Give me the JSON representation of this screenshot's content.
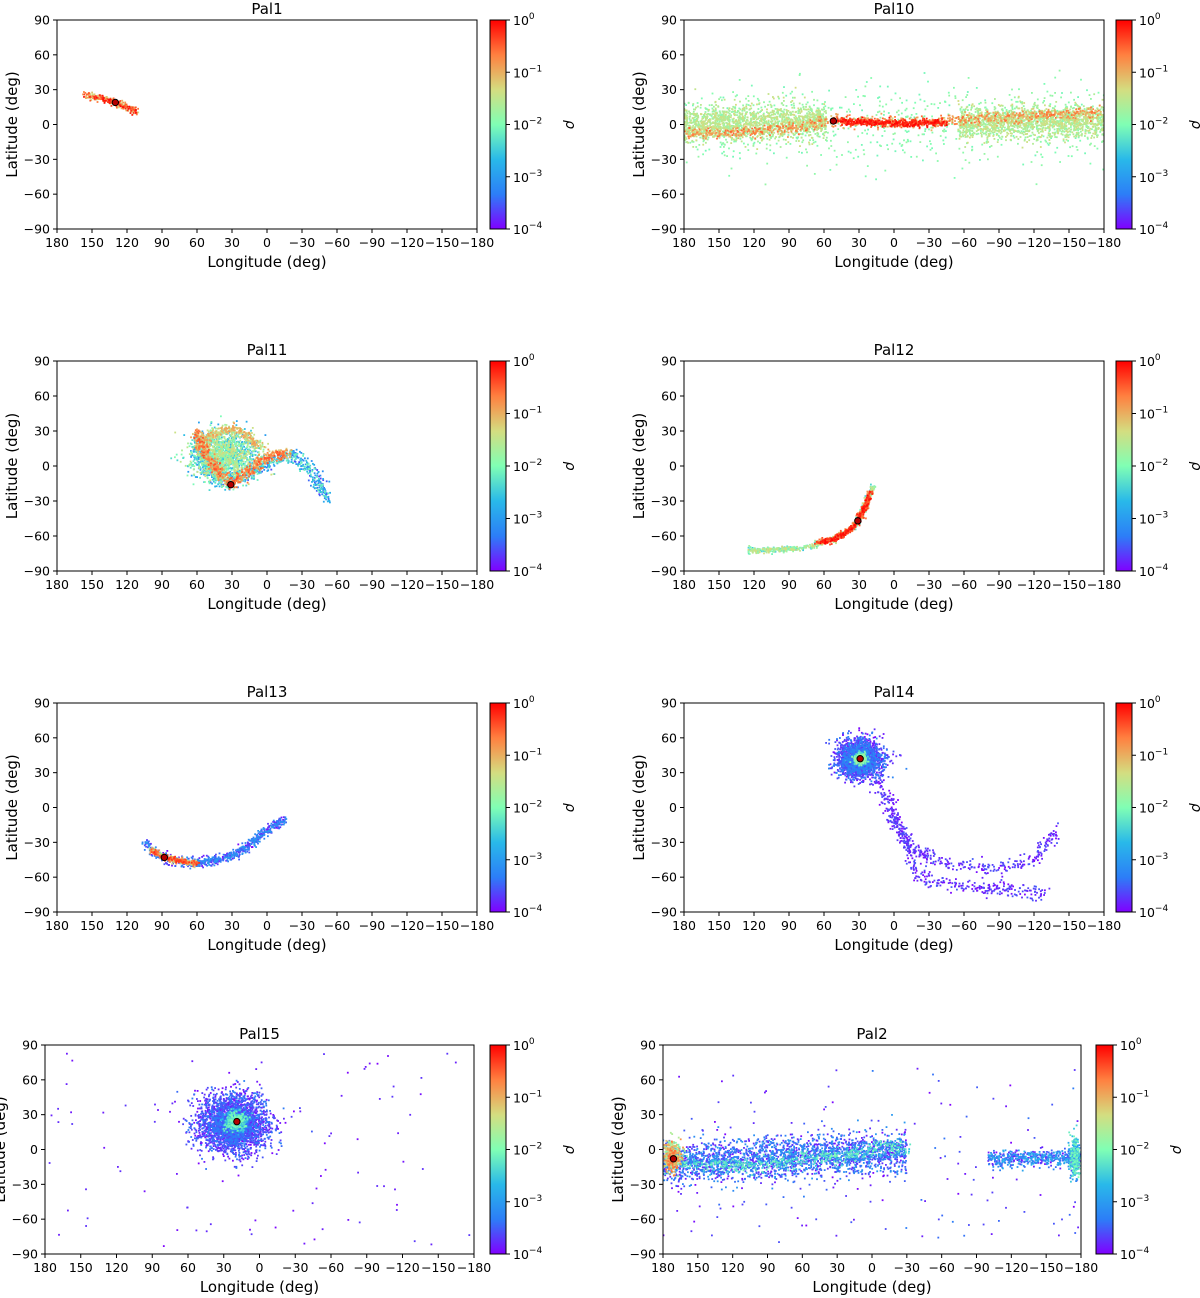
{
  "figure": {
    "colorbar_label": "ρ",
    "colorbar_ticks": [
      {
        "base": "10",
        "exp": "0"
      },
      {
        "base": "10",
        "exp": "−1"
      },
      {
        "base": "10",
        "exp": "−2"
      },
      {
        "base": "10",
        "exp": "−3"
      },
      {
        "base": "10",
        "exp": "−4"
      }
    ],
    "colormap": [
      "#8000ff",
      "#2c7ef7",
      "#29b9e9",
      "#80ffb4",
      "#d4dd80",
      "#ff8040",
      "#ff0000"
    ]
  },
  "chart_data": [
    {
      "type": "scatter",
      "title": "Pal1",
      "xlabel": "Longitude (deg)",
      "ylabel": "Latitude (deg)",
      "xlim": [
        180,
        -180
      ],
      "ylim": [
        -90,
        90
      ],
      "xticks": [
        "180",
        "150",
        "120",
        "90",
        "60",
        "30",
        "0",
        "−30",
        "−60",
        "−90",
        "−120",
        "−150",
        "−180"
      ],
      "yticks": [
        "90",
        "60",
        "30",
        "0",
        "−30",
        "−60",
        "−90"
      ],
      "cluster_position": {
        "lon": 130,
        "lat": 19
      },
      "density_structure": [
        {
          "kind": "stream",
          "points": [
            [
              158,
              26
            ],
            [
              145,
              23
            ],
            [
              130,
              19
            ],
            [
              120,
              15
            ],
            [
              112,
              11
            ]
          ],
          "spread": 1.5,
          "count": 260,
          "dmin": 0.03,
          "dmax": 0.9
        }
      ]
    },
    {
      "type": "scatter",
      "title": "Pal10",
      "xlabel": "Longitude (deg)",
      "ylabel": "Latitude (deg)",
      "xlim": [
        180,
        -180
      ],
      "ylim": [
        -90,
        90
      ],
      "xticks": [
        "180",
        "150",
        "120",
        "90",
        "60",
        "30",
        "0",
        "−30",
        "−60",
        "−90",
        "−120",
        "−150",
        "−180"
      ],
      "yticks": [
        "90",
        "60",
        "30",
        "0",
        "−30",
        "−60",
        "−90"
      ],
      "cluster_position": {
        "lon": 52,
        "lat": 3
      },
      "density_structure": [
        {
          "kind": "band",
          "lon": [
            180,
            58
          ],
          "center": [
            0,
            3
          ],
          "spread": 14,
          "count": 1500,
          "dmin": 0.012,
          "dmax": 0.05
        },
        {
          "kind": "band",
          "lon": [
            -55,
            -180
          ],
          "center": [
            1,
            3
          ],
          "spread": 13,
          "count": 1500,
          "dmin": 0.012,
          "dmax": 0.05
        },
        {
          "kind": "band",
          "lon": [
            180,
            -180
          ],
          "center": [
            0,
            0
          ],
          "spread": 32,
          "count": 650,
          "dmin": 0.008,
          "dmax": 0.016
        },
        {
          "kind": "stream",
          "points": [
            [
              180,
              -8
            ],
            [
              120,
              -6
            ],
            [
              80,
              -2
            ],
            [
              55,
              3
            ],
            [
              20,
              3
            ],
            [
              -10,
              2
            ],
            [
              -30,
              2
            ],
            [
              -55,
              4
            ],
            [
              -120,
              8
            ],
            [
              -180,
              10
            ]
          ],
          "spread": 2.5,
          "count": 900,
          "dmin": 0.05,
          "dmax": 0.3
        },
        {
          "kind": "stream",
          "points": [
            [
              48,
              3
            ],
            [
              20,
              2
            ],
            [
              0,
              1
            ],
            [
              -20,
              1
            ],
            [
              -45,
              2
            ]
          ],
          "spread": 1.5,
          "count": 500,
          "dmin": 0.3,
          "dmax": 1.0
        }
      ]
    },
    {
      "type": "scatter",
      "title": "Pal11",
      "xlabel": "Longitude (deg)",
      "ylabel": "Latitude (deg)",
      "xlim": [
        180,
        -180
      ],
      "ylim": [
        -90,
        90
      ],
      "xticks": [
        "180",
        "150",
        "120",
        "90",
        "60",
        "30",
        "0",
        "−30",
        "−60",
        "−90",
        "−120",
        "−150",
        "−180"
      ],
      "yticks": [
        "90",
        "60",
        "30",
        "0",
        "−30",
        "−60",
        "−90"
      ],
      "cluster_position": {
        "lon": 31,
        "lat": -16
      },
      "density_structure": [
        {
          "kind": "blob",
          "center": [
            37,
            9
          ],
          "rx": 22,
          "ry": 17,
          "count": 1500,
          "dmin": 0.001,
          "dmax": 0.05
        },
        {
          "kind": "stream",
          "points": [
            [
              58,
              28
            ],
            [
              60,
              12
            ],
            [
              50,
              -5
            ],
            [
              35,
              -14
            ],
            [
              20,
              -10
            ],
            [
              0,
              2
            ],
            [
              -20,
              10
            ],
            [
              -40,
              -5
            ],
            [
              -52,
              -30
            ]
          ],
          "spread": 3,
          "count": 700,
          "dmin": 0.0002,
          "dmax": 0.01
        },
        {
          "kind": "stream",
          "points": [
            [
              60,
              30
            ],
            [
              55,
              15
            ],
            [
              45,
              0
            ],
            [
              31,
              -16
            ],
            [
              15,
              -5
            ],
            [
              0,
              8
            ],
            [
              -20,
              12
            ]
          ],
          "spread": 2.5,
          "count": 600,
          "dmin": 0.05,
          "dmax": 0.4
        },
        {
          "kind": "stream",
          "points": [
            [
              55,
              20
            ],
            [
              45,
              28
            ],
            [
              30,
              32
            ],
            [
              15,
              25
            ],
            [
              5,
              15
            ]
          ],
          "spread": 2,
          "count": 300,
          "dmin": 0.02,
          "dmax": 0.15
        }
      ]
    },
    {
      "type": "scatter",
      "title": "Pal12",
      "xlabel": "Longitude (deg)",
      "ylabel": "Latitude (deg)",
      "xlim": [
        180,
        -180
      ],
      "ylim": [
        -90,
        90
      ],
      "xticks": [
        "180",
        "150",
        "120",
        "90",
        "60",
        "30",
        "0",
        "−30",
        "−60",
        "−90",
        "−120",
        "−150",
        "−180"
      ],
      "yticks": [
        "90",
        "60",
        "30",
        "0",
        "−30",
        "−60",
        "−90"
      ],
      "cluster_position": {
        "lon": 31,
        "lat": -47
      },
      "density_structure": [
        {
          "kind": "stream",
          "points": [
            [
              125,
              -72
            ],
            [
              100,
              -72
            ],
            [
              75,
              -70
            ],
            [
              50,
              -62
            ],
            [
              35,
              -53
            ],
            [
              31,
              -47
            ],
            [
              25,
              -35
            ],
            [
              20,
              -22
            ],
            [
              18,
              -17
            ]
          ],
          "spread": 1.2,
          "count": 600,
          "dmin": 0.003,
          "dmax": 0.05
        },
        {
          "kind": "stream",
          "points": [
            [
              65,
              -66
            ],
            [
              50,
              -62
            ],
            [
              35,
              -53
            ],
            [
              31,
              -47
            ],
            [
              25,
              -35
            ],
            [
              20,
              -22
            ]
          ],
          "spread": 1.2,
          "count": 500,
          "dmin": 0.1,
          "dmax": 1.0
        }
      ]
    },
    {
      "type": "scatter",
      "title": "Pal13",
      "xlabel": "Longitude (deg)",
      "ylabel": "Latitude (deg)",
      "xlim": [
        180,
        -180
      ],
      "ylim": [
        -90,
        90
      ],
      "xticks": [
        "180",
        "150",
        "120",
        "90",
        "60",
        "30",
        "0",
        "−30",
        "−60",
        "−90",
        "−120",
        "−150",
        "−180"
      ],
      "yticks": [
        "90",
        "60",
        "30",
        "0",
        "−30",
        "−60",
        "−90"
      ],
      "cluster_position": {
        "lon": 88,
        "lat": -43
      },
      "density_structure": [
        {
          "kind": "stream",
          "points": [
            [
              105,
              -30
            ],
            [
              95,
              -40
            ],
            [
              80,
              -46
            ],
            [
              60,
              -48
            ],
            [
              40,
              -45
            ],
            [
              20,
              -36
            ],
            [
              5,
              -24
            ],
            [
              -15,
              -10
            ]
          ],
          "spread": 2,
          "count": 700,
          "dmin": 0.0001,
          "dmax": 0.001
        },
        {
          "kind": "stream",
          "points": [
            [
              100,
              -36
            ],
            [
              88,
              -43
            ],
            [
              75,
              -46
            ],
            [
              60,
              -48
            ]
          ],
          "spread": 1.2,
          "count": 400,
          "dmin": 0.01,
          "dmax": 0.6
        }
      ]
    },
    {
      "type": "scatter",
      "title": "Pal14",
      "xlabel": "Longitude (deg)",
      "ylabel": "Latitude (deg)",
      "xlim": [
        180,
        -180
      ],
      "ylim": [
        -90,
        90
      ],
      "xticks": [
        "180",
        "150",
        "120",
        "90",
        "60",
        "30",
        "0",
        "−30",
        "−60",
        "−90",
        "−120",
        "−150",
        "−180"
      ],
      "yticks": [
        "90",
        "60",
        "30",
        "0",
        "−30",
        "−60",
        "−90"
      ],
      "cluster_position": {
        "lon": 29,
        "lat": 42
      },
      "density_structure": [
        {
          "kind": "blob",
          "center": [
            29,
            42
          ],
          "rx": 16,
          "ry": 13,
          "count": 2200,
          "dmin": 0.0001,
          "dmax": 0.0006
        },
        {
          "kind": "blob",
          "center": [
            29,
            42
          ],
          "rx": 5,
          "ry": 4,
          "count": 300,
          "dmin": 0.002,
          "dmax": 0.02
        },
        {
          "kind": "stream",
          "points": [
            [
              15,
              25
            ],
            [
              5,
              0
            ],
            [
              -15,
              -35
            ],
            [
              -50,
              -50
            ],
            [
              -90,
              -52
            ],
            [
              -120,
              -45
            ],
            [
              -140,
              -20
            ]
          ],
          "spread": 3,
          "count": 380,
          "dmin": 0.0001,
          "dmax": 0.0003
        },
        {
          "kind": "stream",
          "points": [
            [
              5,
              10
            ],
            [
              -20,
              -60
            ],
            [
              -60,
              -68
            ],
            [
              -100,
              -70
            ],
            [
              -130,
              -75
            ]
          ],
          "spread": 3,
          "count": 320,
          "dmin": 0.0001,
          "dmax": 0.0003
        }
      ]
    },
    {
      "type": "scatter",
      "title": "Pal15",
      "xlabel": "Longitude (deg)",
      "ylabel": "Latitude (deg)",
      "xlim": [
        180,
        -180
      ],
      "ylim": [
        -90,
        90
      ],
      "xticks": [
        "180",
        "150",
        "120",
        "90",
        "60",
        "30",
        "0",
        "−30",
        "−60",
        "−90",
        "−120",
        "−150",
        "−180"
      ],
      "yticks": [
        "90",
        "60",
        "30",
        "0",
        "−30",
        "−60",
        "−90"
      ],
      "cluster_position": {
        "lon": 19,
        "lat": 24
      },
      "density_structure": [
        {
          "kind": "blob",
          "center": [
            22,
            22
          ],
          "rx": 24,
          "ry": 20,
          "count": 3000,
          "dmin": 0.0001,
          "dmax": 0.0005
        },
        {
          "kind": "blob",
          "center": [
            20,
            24
          ],
          "rx": 7,
          "ry": 7,
          "count": 400,
          "dmin": 0.001,
          "dmax": 0.01
        },
        {
          "kind": "uniform",
          "lon": [
            180,
            -180
          ],
          "lat": [
            -85,
            85
          ],
          "count": 90,
          "dmin": 0.0001,
          "dmax": 0.0002
        }
      ]
    },
    {
      "type": "scatter",
      "title": "Pal2",
      "xlabel": "Longitude (deg)",
      "ylabel": "Latitude (deg)",
      "xlim": [
        180,
        -180
      ],
      "ylim": [
        -90,
        90
      ],
      "xticks": [
        "180",
        "150",
        "120",
        "90",
        "60",
        "30",
        "0",
        "−30",
        "−60",
        "−90",
        "−120",
        "−150",
        "−180"
      ],
      "yticks": [
        "90",
        "60",
        "30",
        "0",
        "−30",
        "−60",
        "−90"
      ],
      "cluster_position": {
        "lon": 171,
        "lat": -8
      },
      "density_structure": [
        {
          "kind": "band",
          "lon": [
            180,
            -30
          ],
          "center": [
            -12,
            -2
          ],
          "spread": 16,
          "count": 2400,
          "dmin": 0.0001,
          "dmax": 0.001
        },
        {
          "kind": "band",
          "lon": [
            -100,
            -180
          ],
          "center": [
            -8,
            -8
          ],
          "spread": 6,
          "count": 500,
          "dmin": 0.0001,
          "dmax": 0.002
        },
        {
          "kind": "uniform",
          "lon": [
            180,
            -180
          ],
          "lat": [
            -80,
            70
          ],
          "count": 160,
          "dmin": 0.0001,
          "dmax": 0.0005
        },
        {
          "kind": "stream",
          "points": [
            [
              180,
              -8
            ],
            [
              150,
              -12
            ],
            [
              120,
              -14
            ],
            [
              90,
              -12
            ],
            [
              60,
              -8
            ],
            [
              30,
              -6
            ],
            [
              10,
              -3
            ],
            [
              0,
              0
            ],
            [
              -20,
              2
            ],
            [
              -30,
              0
            ]
          ],
          "spread": 3,
          "count": 500,
          "dmin": 0.002,
          "dmax": 0.01
        },
        {
          "kind": "blob",
          "center": [
            172,
            -6
          ],
          "rx": 6,
          "ry": 10,
          "count": 400,
          "dmin": 0.005,
          "dmax": 0.3
        },
        {
          "kind": "blob",
          "center": [
            -175,
            -6
          ],
          "rx": 4,
          "ry": 14,
          "count": 300,
          "dmin": 0.0005,
          "dmax": 0.01
        }
      ]
    }
  ]
}
